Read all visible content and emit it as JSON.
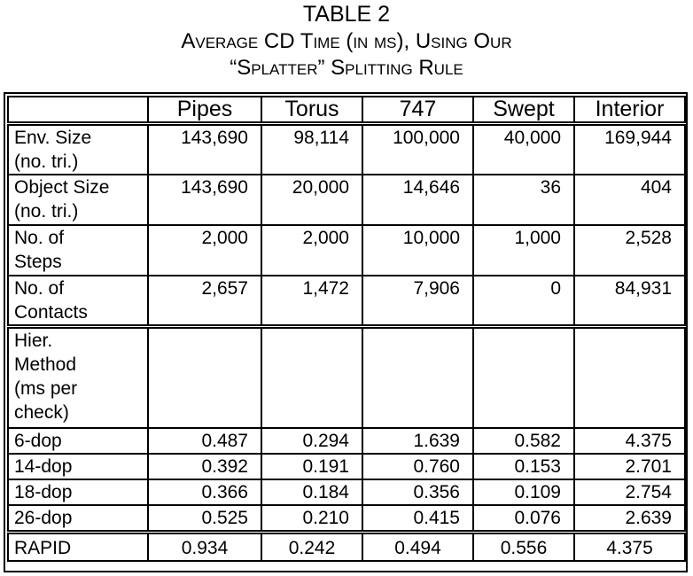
{
  "caption": {
    "line1": "TABLE 2",
    "line2": "Average CD Time (in ms), Using Our",
    "line3": "“Splatter” Splitting Rule"
  },
  "table": {
    "columns": [
      "",
      "Pipes",
      "Torus",
      "747",
      "Swept",
      "Interior"
    ],
    "rows": [
      {
        "label": [
          "Env. Size",
          "(no. tri.)"
        ],
        "values": [
          "143,690",
          "98,114",
          "100,000",
          "40,000",
          "169,944"
        ]
      },
      {
        "label": [
          "Object Size",
          "(no. tri.)"
        ],
        "values": [
          "143,690",
          "20,000",
          "14,646",
          "36",
          "404"
        ]
      },
      {
        "label": [
          "No. of",
          "Steps"
        ],
        "values": [
          "2,000",
          "2,000",
          "10,000",
          "1,000",
          "2,528"
        ]
      },
      {
        "label": [
          "No. of",
          "Contacts"
        ],
        "values": [
          "2,657",
          "1,472",
          "7,906",
          "0",
          "84,931"
        ]
      },
      {
        "label": [
          "Hier.",
          "Method",
          "(ms per",
          "check)"
        ],
        "values": [
          "",
          "",
          "",
          "",
          ""
        ]
      },
      {
        "label": [
          "6-dop"
        ],
        "values": [
          "0.487",
          "0.294",
          "1.639",
          "0.582",
          "4.375"
        ]
      },
      {
        "label": [
          "14-dop"
        ],
        "values": [
          "0.392",
          "0.191",
          "0.760",
          "0.153",
          "2.701"
        ]
      },
      {
        "label": [
          "18-dop"
        ],
        "values": [
          "0.366",
          "0.184",
          "0.356",
          "0.109",
          "2.754"
        ]
      },
      {
        "label": [
          "26-dop"
        ],
        "values": [
          "0.525",
          "0.210",
          "0.415",
          "0.076",
          "2.639"
        ]
      },
      {
        "label": [
          "RAPID"
        ],
        "values": [
          "0.934",
          "0.242",
          "0.494",
          "0.556",
          "4.375"
        ]
      }
    ]
  }
}
